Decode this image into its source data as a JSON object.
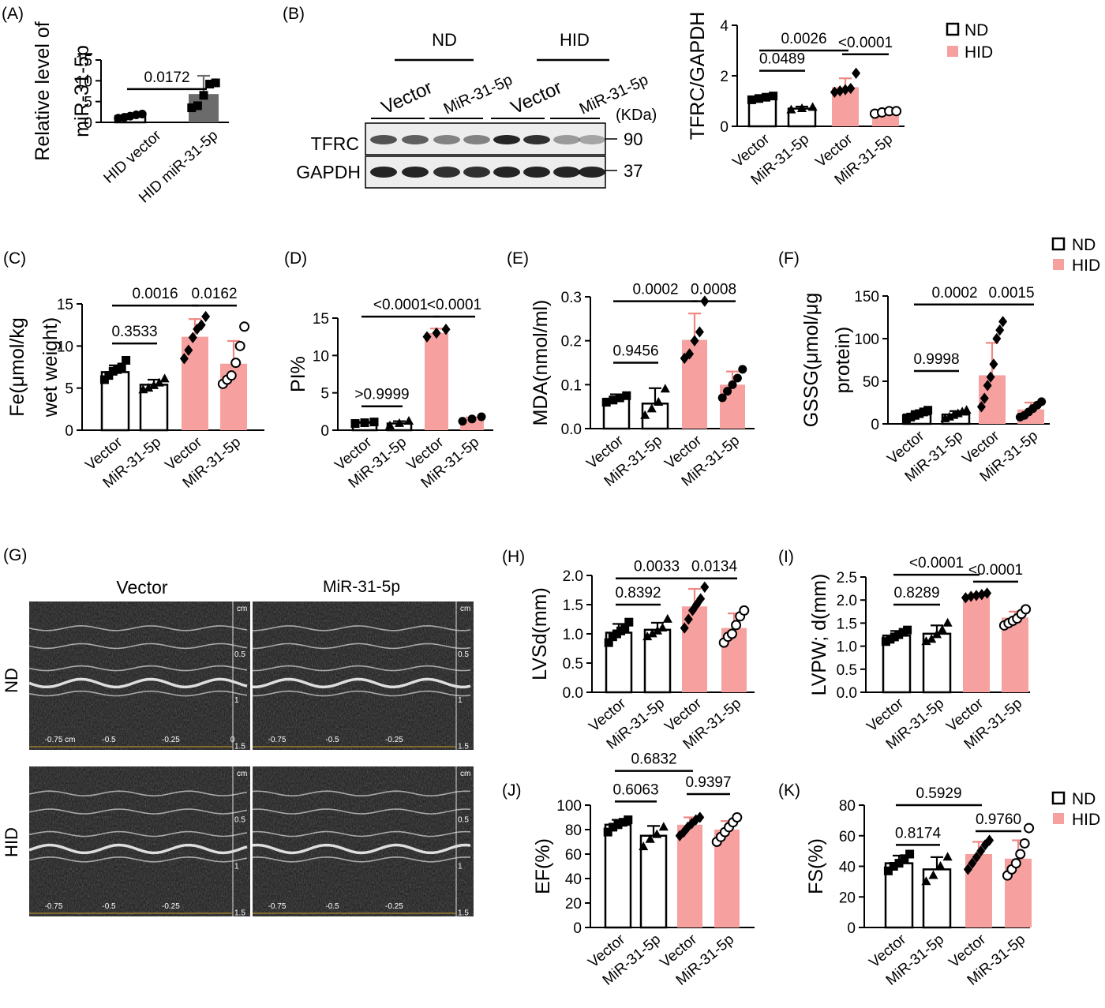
{
  "legend": {
    "nd": "ND",
    "hid": "HID",
    "colors": {
      "nd_fill": "#ffffff",
      "hid_fill": "#f6a1a0",
      "hid_error": "#f08784",
      "hid_vector_a": "#6b6b6b"
    }
  },
  "chart_data": [
    {
      "id": "A",
      "panel_label": "(A)",
      "type": "bar",
      "ylabel": [
        "Relative level of",
        "miR-31-5p"
      ],
      "yticks": [
        "0",
        "5",
        "10",
        "15"
      ],
      "ylim": [
        0,
        15
      ],
      "categories": [
        "HID vector",
        "HID miR-31-5p"
      ],
      "bars": [
        {
          "group": "gray-white",
          "mean": 1.5,
          "sd": 0.5,
          "points": [
            1.0,
            1.2,
            1.5,
            1.8,
            2.0
          ],
          "marker": "circle-filled"
        },
        {
          "group": "gray",
          "mean": 6.8,
          "sd": 4.4,
          "points": [
            3.5,
            4.0,
            6.5,
            9.2,
            9.5
          ],
          "marker": "square-filled"
        }
      ],
      "comparisons": [
        {
          "from": 0,
          "to": 1,
          "label": "0.0172",
          "y": 8.0
        }
      ]
    },
    {
      "id": "B",
      "panel_label": "(B)",
      "type": "bar",
      "ylabel": [
        "TFRC/GAPDH"
      ],
      "yticks": [
        "0",
        "2",
        "4"
      ],
      "ylim": [
        0,
        4
      ],
      "categories": [
        "Vector",
        "MiR-31-5p",
        "Vector",
        "MiR-31-5p"
      ],
      "bars": [
        {
          "group": "ND",
          "mean": 1.15,
          "sd": 0.08,
          "points": [
            1.05,
            1.1,
            1.15,
            1.2
          ],
          "marker": "square-filled"
        },
        {
          "group": "ND",
          "mean": 0.7,
          "sd": 0.08,
          "points": [
            0.65,
            0.7,
            0.75
          ],
          "marker": "triangle-filled"
        },
        {
          "group": "HID",
          "mean": 1.55,
          "sd": 0.35,
          "points": [
            1.35,
            1.4,
            1.45,
            1.5,
            2.1
          ],
          "marker": "diamond-filled"
        },
        {
          "group": "HID",
          "mean": 0.55,
          "sd": 0.08,
          "points": [
            0.5,
            0.55,
            0.6,
            0.6
          ],
          "marker": "circle-open"
        }
      ],
      "comparisons": [
        {
          "from": 0,
          "to": 1,
          "label": "0.0489",
          "y": 2.2
        },
        {
          "from": 0,
          "to": 2,
          "label": "0.0026",
          "y": 3.0
        },
        {
          "from": 2,
          "to": 3,
          "label": "<0.0001",
          "y": 2.85
        }
      ]
    },
    {
      "id": "C",
      "panel_label": "(C)",
      "type": "bar",
      "ylabel": [
        "Fe(μmol/kg",
        "wet weight)"
      ],
      "yticks": [
        "0",
        "5",
        "10",
        "15"
      ],
      "ylim": [
        0,
        15
      ],
      "categories": [
        "Vector",
        "MiR-31-5p",
        "Vector",
        "MiR-31-5p"
      ],
      "bars": [
        {
          "group": "ND",
          "mean": 6.9,
          "sd": 0.8,
          "points": [
            6.0,
            6.5,
            7.0,
            7.2,
            7.5,
            8.3
          ],
          "marker": "square-filled"
        },
        {
          "group": "ND",
          "mean": 5.4,
          "sd": 0.6,
          "points": [
            4.8,
            5.0,
            5.3,
            5.6,
            6.1
          ],
          "marker": "triangle-filled"
        },
        {
          "group": "HID",
          "mean": 11.1,
          "sd": 2.1,
          "points": [
            8.5,
            9.5,
            11.0,
            12.0,
            12.5,
            13.5
          ],
          "marker": "diamond-filled"
        },
        {
          "group": "HID",
          "mean": 7.9,
          "sd": 2.7,
          "points": [
            5.5,
            6.0,
            6.5,
            8.0,
            10.0,
            12.3
          ],
          "marker": "circle-open"
        }
      ],
      "comparisons": [
        {
          "from": 0,
          "to": 1,
          "label": "0.3533",
          "y": 10.3
        },
        {
          "from": 0,
          "to": 2,
          "label": "0.0016",
          "y": 14.8
        },
        {
          "from": 2,
          "to": 3,
          "label": "0.0162",
          "y": 14.8
        }
      ]
    },
    {
      "id": "D",
      "panel_label": "(D)",
      "type": "bar",
      "ylabel": [
        "PI%"
      ],
      "yticks": [
        "0",
        "5",
        "10",
        "15"
      ],
      "ylim": [
        0,
        15
      ],
      "categories": [
        "Vector",
        "MiR-31-5p",
        "Vector",
        "MiR-31-5p"
      ],
      "bars": [
        {
          "group": "ND",
          "mean": 1.0,
          "sd": 0.1,
          "points": [
            0.9,
            1.0,
            1.1
          ],
          "marker": "square-filled"
        },
        {
          "group": "ND",
          "mean": 0.9,
          "sd": 0.3,
          "points": [
            0.6,
            0.9,
            1.2
          ],
          "marker": "triangle-filled"
        },
        {
          "group": "HID",
          "mean": 13.0,
          "sd": 0.6,
          "points": [
            12.5,
            13.0,
            13.5
          ],
          "marker": "diamond-filled"
        },
        {
          "group": "HID",
          "mean": 1.5,
          "sd": 0.2,
          "points": [
            1.2,
            1.5,
            1.8
          ],
          "marker": "circle-filled"
        }
      ],
      "comparisons": [
        {
          "from": 0,
          "to": 1,
          "label": ">0.9999",
          "y": 3.2
        },
        {
          "from": 0,
          "to": 2,
          "label": "<0.0001",
          "y": 15.2
        },
        {
          "from": 2,
          "to": 3,
          "label": "<0.0001",
          "y": 15.2
        }
      ]
    },
    {
      "id": "E",
      "panel_label": "(E)",
      "type": "bar",
      "ylabel": [
        "MDA(nmol/ml)"
      ],
      "yticks": [
        "0.0",
        "0.1",
        "0.2",
        "0.3"
      ],
      "ylim": [
        0,
        0.3
      ],
      "categories": [
        "Vector",
        "MiR-31-5p",
        "Vector",
        "MiR-31-5p"
      ],
      "bars": [
        {
          "group": "ND",
          "mean": 0.068,
          "sd": 0.01,
          "points": [
            0.06,
            0.065,
            0.07,
            0.075
          ],
          "marker": "square-filled"
        },
        {
          "group": "ND",
          "mean": 0.057,
          "sd": 0.035,
          "points": [
            0.03,
            0.045,
            0.06,
            0.09
          ],
          "marker": "triangle-filled"
        },
        {
          "group": "HID",
          "mean": 0.202,
          "sd": 0.06,
          "points": [
            0.16,
            0.17,
            0.2,
            0.22,
            0.29
          ],
          "marker": "diamond-filled"
        },
        {
          "group": "HID",
          "mean": 0.1,
          "sd": 0.03,
          "points": [
            0.07,
            0.085,
            0.1,
            0.115,
            0.135
          ],
          "marker": "circle-filled"
        }
      ],
      "comparisons": [
        {
          "from": 0,
          "to": 1,
          "label": "0.9456",
          "y": 0.15
        },
        {
          "from": 0,
          "to": 2,
          "label": "0.0002",
          "y": 0.29
        },
        {
          "from": 2,
          "to": 3,
          "label": "0.0008",
          "y": 0.29
        }
      ]
    },
    {
      "id": "F",
      "panel_label": "(F)",
      "type": "bar",
      "ylabel": [
        "GSSG(μmol/μg",
        "protein)"
      ],
      "yticks": [
        "0",
        "50",
        "100",
        "150"
      ],
      "ylim": [
        0,
        150
      ],
      "categories": [
        "Vector",
        "MiR-31-5p",
        "Vector",
        "MiR-31-5p"
      ],
      "bars": [
        {
          "group": "ND",
          "mean": 11,
          "sd": 4,
          "points": [
            6,
            8,
            10,
            12,
            14,
            16
          ],
          "marker": "square-filled"
        },
        {
          "group": "ND",
          "mean": 11,
          "sd": 4,
          "points": [
            6,
            8,
            10,
            12,
            14,
            16
          ],
          "marker": "triangle-filled"
        },
        {
          "group": "HID",
          "mean": 57,
          "sd": 38,
          "points": [
            20,
            30,
            45,
            55,
            70,
            100,
            110,
            120
          ],
          "marker": "diamond-filled"
        },
        {
          "group": "HID",
          "mean": 17,
          "sd": 8,
          "points": [
            8,
            10,
            14,
            18,
            22,
            26
          ],
          "marker": "circle-filled"
        }
      ],
      "comparisons": [
        {
          "from": 0,
          "to": 1,
          "label": "0.9998",
          "y": 62
        },
        {
          "from": 0,
          "to": 2,
          "label": "0.0002",
          "y": 140
        },
        {
          "from": 2,
          "to": 3,
          "label": "0.0015",
          "y": 140
        }
      ]
    },
    {
      "id": "H",
      "panel_label": "(H)",
      "type": "bar",
      "ylabel": [
        "LVSd(mm)"
      ],
      "yticks": [
        "0.0",
        "0.5",
        "1.0",
        "1.5",
        "2.0"
      ],
      "ylim": [
        0,
        2.0
      ],
      "categories": [
        "Vector",
        "MiR-31-5p",
        "Vector",
        "MiR-31-5p"
      ],
      "bars": [
        {
          "group": "ND",
          "mean": 1.02,
          "sd": 0.15,
          "points": [
            0.85,
            0.95,
            1.0,
            1.05,
            1.1,
            1.2
          ],
          "marker": "square-filled"
        },
        {
          "group": "ND",
          "mean": 1.07,
          "sd": 0.12,
          "points": [
            0.95,
            1.0,
            1.05,
            1.1,
            1.25
          ],
          "marker": "triangle-filled"
        },
        {
          "group": "HID",
          "mean": 1.47,
          "sd": 0.3,
          "points": [
            1.1,
            1.25,
            1.4,
            1.5,
            1.6,
            1.8
          ],
          "marker": "diamond-filled"
        },
        {
          "group": "HID",
          "mean": 1.1,
          "sd": 0.25,
          "points": [
            0.85,
            0.95,
            1.0,
            1.15,
            1.3,
            1.4
          ],
          "marker": "circle-open"
        }
      ],
      "comparisons": [
        {
          "from": 0,
          "to": 1,
          "label": "0.8392",
          "y": 1.5
        },
        {
          "from": 0,
          "to": 2,
          "label": "0.0033",
          "y": 1.95
        },
        {
          "from": 2,
          "to": 3,
          "label": "0.0134",
          "y": 1.95
        }
      ]
    },
    {
      "id": "I",
      "panel_label": "(I)",
      "type": "bar",
      "ylabel": [
        "LVPW; d(mm)"
      ],
      "yticks": [
        "0.0",
        "0.5",
        "1.0",
        "1.5",
        "2.0",
        "2.5"
      ],
      "ylim": [
        0,
        2.5
      ],
      "categories": [
        "Vector",
        "MiR-31-5p",
        "Vector",
        "MiR-31-5p"
      ],
      "bars": [
        {
          "group": "ND",
          "mean": 1.23,
          "sd": 0.1,
          "points": [
            1.1,
            1.15,
            1.2,
            1.25,
            1.3,
            1.35
          ],
          "marker": "square-filled"
        },
        {
          "group": "ND",
          "mean": 1.27,
          "sd": 0.18,
          "points": [
            1.1,
            1.15,
            1.25,
            1.35,
            1.5
          ],
          "marker": "triangle-filled"
        },
        {
          "group": "HID",
          "mean": 2.1,
          "sd": 0.04,
          "points": [
            2.05,
            2.08,
            2.1,
            2.12,
            2.15
          ],
          "marker": "diamond-filled"
        },
        {
          "group": "HID",
          "mean": 1.62,
          "sd": 0.13,
          "points": [
            1.45,
            1.5,
            1.55,
            1.6,
            1.7,
            1.8
          ],
          "marker": "circle-open"
        }
      ],
      "comparisons": [
        {
          "from": 0,
          "to": 1,
          "label": "0.8289",
          "y": 1.9
        },
        {
          "from": 0,
          "to": 2,
          "label": "<0.0001",
          "y": 2.55
        },
        {
          "from": 2,
          "to": 3,
          "label": "<0.0001",
          "y": 2.4
        }
      ]
    },
    {
      "id": "J",
      "panel_label": "(J)",
      "type": "bar",
      "ylabel": [
        "EF(%)"
      ],
      "yticks": [
        "0",
        "20",
        "40",
        "60",
        "80",
        "100"
      ],
      "ylim": [
        0,
        100
      ],
      "categories": [
        "Vector",
        "MiR-31-5p",
        "Vector",
        "MiR-31-5p"
      ],
      "bars": [
        {
          "group": "ND",
          "mean": 84,
          "sd": 4,
          "points": [
            78,
            82,
            84,
            86,
            88
          ],
          "marker": "square-filled"
        },
        {
          "group": "ND",
          "mean": 75,
          "sd": 8,
          "points": [
            66,
            72,
            76,
            82
          ],
          "marker": "triangle-filled"
        },
        {
          "group": "HID",
          "mean": 84,
          "sd": 6,
          "points": [
            75,
            78,
            82,
            85,
            88,
            90
          ],
          "marker": "diamond-filled"
        },
        {
          "group": "HID",
          "mean": 80,
          "sd": 7,
          "points": [
            70,
            74,
            78,
            82,
            86,
            90
          ],
          "marker": "circle-open"
        }
      ],
      "comparisons": [
        {
          "from": 0,
          "to": 1,
          "label": "0.6063",
          "y": 103
        },
        {
          "from": 0,
          "to": 2,
          "label": "0.6832",
          "y": 128
        },
        {
          "from": 2,
          "to": 3,
          "label": "0.9397",
          "y": 109
        }
      ]
    },
    {
      "id": "K",
      "panel_label": "(K)",
      "type": "bar",
      "ylabel": [
        "FS(%)"
      ],
      "yticks": [
        "0",
        "20",
        "40",
        "60",
        "80"
      ],
      "ylim": [
        0,
        80
      ],
      "categories": [
        "Vector",
        "MiR-31-5p",
        "Vector",
        "MiR-31-5p"
      ],
      "bars": [
        {
          "group": "ND",
          "mean": 42,
          "sd": 5,
          "points": [
            37,
            40,
            42,
            45,
            48
          ],
          "marker": "square-filled"
        },
        {
          "group": "ND",
          "mean": 38,
          "sd": 8,
          "points": [
            30,
            34,
            40,
            46
          ],
          "marker": "triangle-filled"
        },
        {
          "group": "HID",
          "mean": 48,
          "sd": 8,
          "points": [
            38,
            42,
            46,
            50,
            54,
            57
          ],
          "marker": "diamond-filled"
        },
        {
          "group": "HID",
          "mean": 45,
          "sd": 12,
          "points": [
            34,
            38,
            42,
            48,
            55,
            65
          ],
          "marker": "circle-open"
        }
      ],
      "comparisons": [
        {
          "from": 0,
          "to": 1,
          "label": "0.8174",
          "y": 54
        },
        {
          "from": 0,
          "to": 2,
          "label": "0.5929",
          "y": 80
        },
        {
          "from": 2,
          "to": 3,
          "label": "0.9760",
          "y": 63
        }
      ]
    }
  ],
  "western_blot": {
    "panel_label": "(B)",
    "group_labels": [
      "ND",
      "HID"
    ],
    "lane_labels": [
      "Vector",
      "MiR-31-5p",
      "Vector",
      "MiR-31-5p"
    ],
    "rows": [
      "TFRC",
      "GAPDH"
    ],
    "kda_header": "(KDa)",
    "kda_values": [
      "90",
      "37"
    ]
  },
  "echo": {
    "panel_label": "(G)",
    "col_labels": [
      "Vector",
      "MiR-31-5p"
    ],
    "row_labels": [
      "ND",
      "HID"
    ],
    "cm_label": "cm",
    "depth_ticks": [
      "0.5",
      "1",
      "1.5"
    ],
    "time_ticks_first": [
      "-0.75 cm",
      "-0.5",
      "-0.25",
      "0"
    ],
    "time_ticks": [
      "-0.75",
      "-0.5",
      "-0.25"
    ]
  }
}
